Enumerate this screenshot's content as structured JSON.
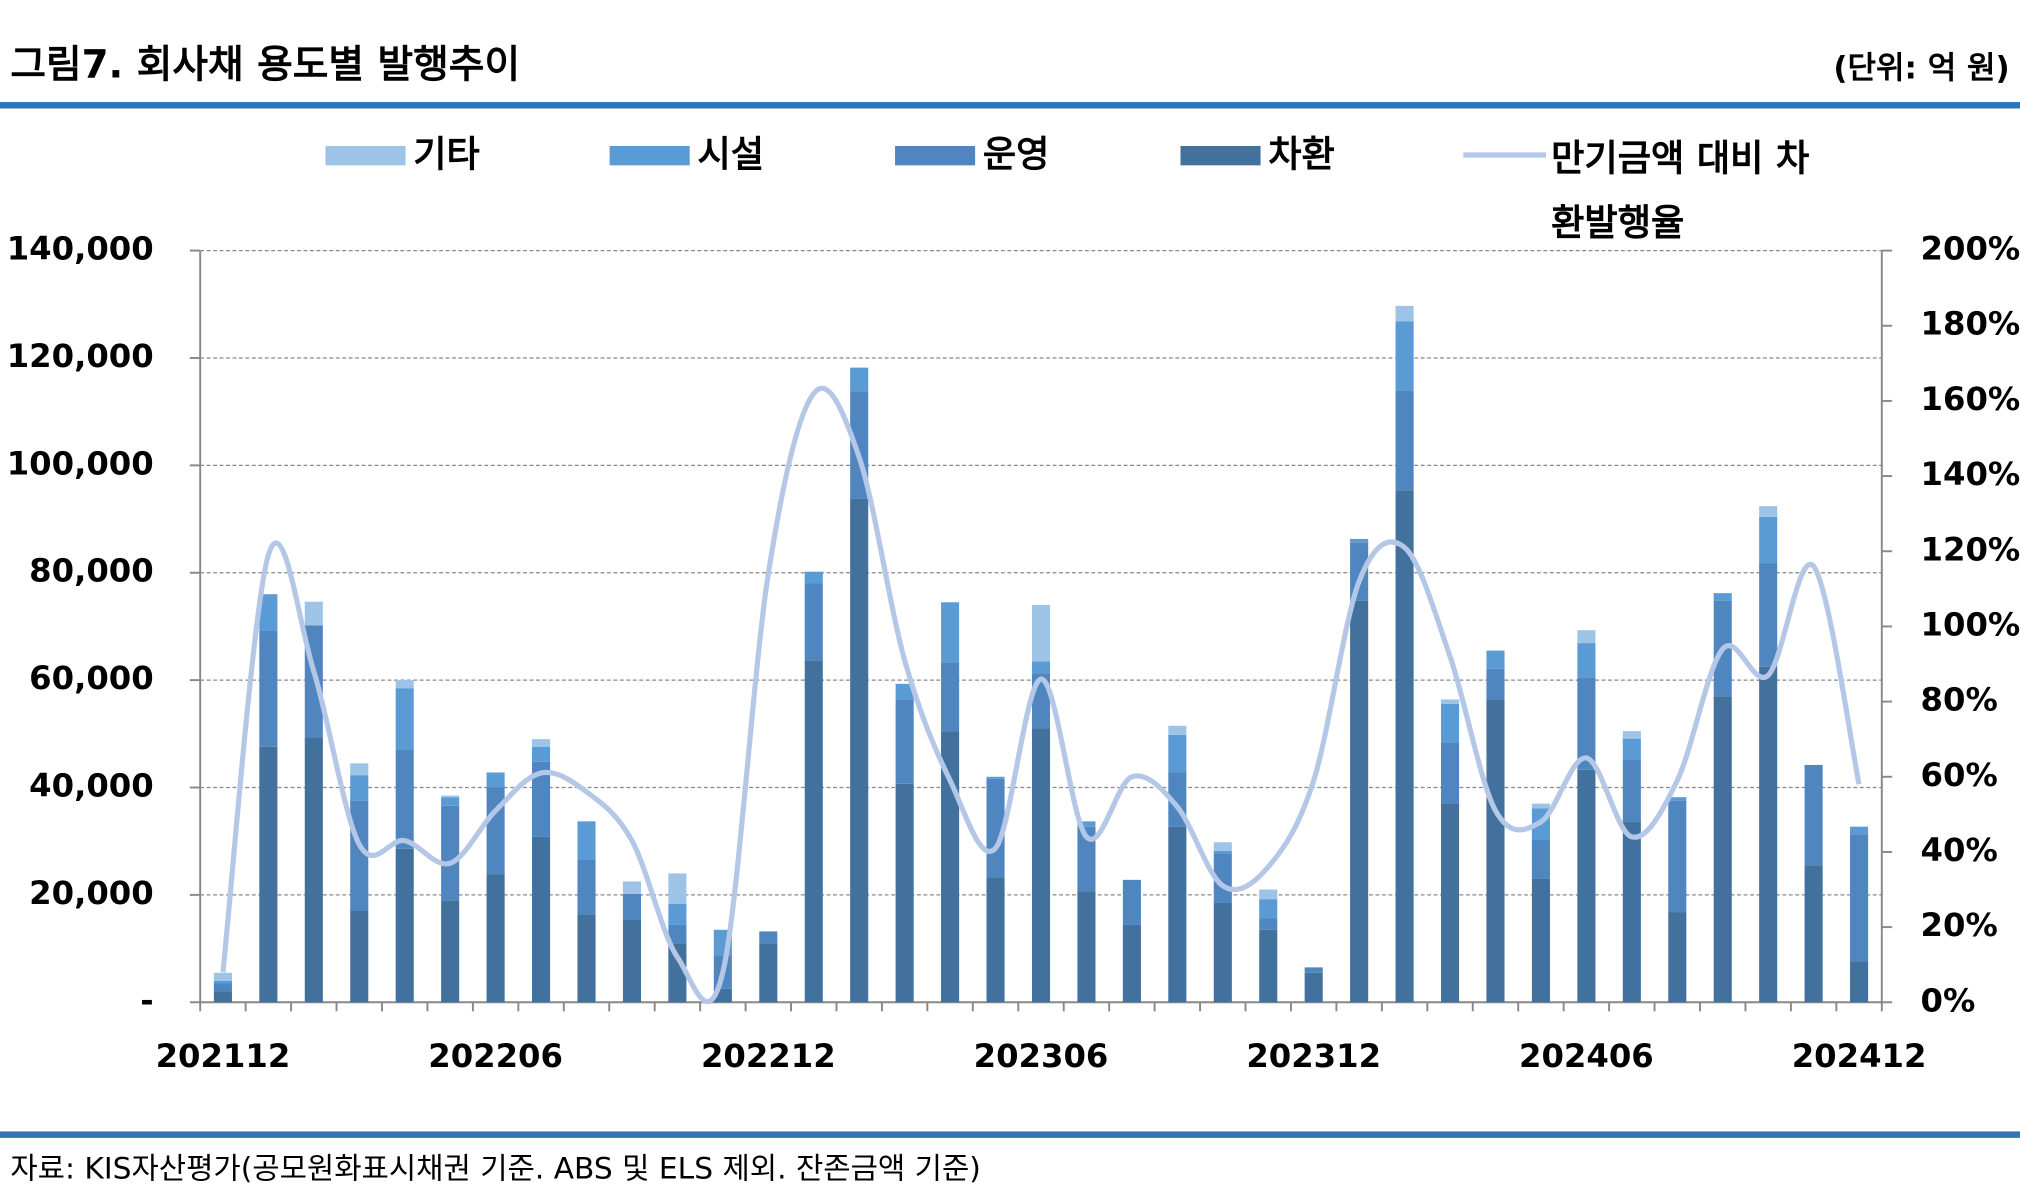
{
  "chart_data": {
    "type": "bar",
    "title": "그림7. 회사채 용도별 발행추이",
    "unit_label": "(단위: 억 원)",
    "source": "자료: KIS자산평가(공모원화표시채권 기준. ABS 및 ELS 제외. 잔존금액 기준)",
    "stacked": true,
    "grid": true,
    "categories": [
      "202112",
      null,
      null,
      null,
      null,
      null,
      "202206",
      null,
      null,
      null,
      null,
      null,
      "202212",
      null,
      null,
      null,
      null,
      null,
      "202306",
      null,
      null,
      null,
      null,
      null,
      "202312",
      null,
      null,
      null,
      null,
      null,
      "202406",
      null,
      null,
      null,
      null,
      null,
      "202412"
    ],
    "series": [
      {
        "name": "기타",
        "color": "#9dc3e6",
        "values": [
          1500,
          0,
          4400,
          2200,
          1500,
          300,
          0,
          1400,
          0,
          2300,
          5700,
          0,
          0,
          0,
          0,
          0,
          0,
          0,
          10500,
          0,
          0,
          1700,
          1600,
          1800,
          0,
          0,
          2900,
          800,
          0,
          900,
          2400,
          1400,
          0,
          0,
          2000,
          0,
          0
        ]
      },
      {
        "name": "시설",
        "color": "#5b9bd5",
        "values": [
          500,
          6700,
          0,
          4800,
          11400,
          1600,
          2800,
          2800,
          7200,
          0,
          3900,
          4800,
          0,
          2200,
          4400,
          3000,
          11200,
          400,
          2200,
          1000,
          0,
          7000,
          500,
          3600,
          0,
          700,
          12800,
          7200,
          3400,
          5800,
          6500,
          3900,
          700,
          1400,
          8600,
          0,
          1400
        ]
      },
      {
        "name": "운영",
        "color": "#4f86c0",
        "values": [
          1500,
          21700,
          20900,
          20500,
          18500,
          17600,
          16200,
          14000,
          10100,
          4800,
          3400,
          6200,
          2200,
          14300,
          20000,
          15600,
          12800,
          18300,
          10300,
          12000,
          8400,
          10100,
          9200,
          2100,
          1000,
          10800,
          18700,
          11400,
          5800,
          7200,
          17100,
          11500,
          20700,
          17800,
          19300,
          18700,
          23800
        ]
      },
      {
        "name": "차환",
        "color": "#41719c",
        "values": [
          2000,
          47600,
          49300,
          17000,
          28600,
          19000,
          23800,
          30800,
          16400,
          15400,
          11000,
          2500,
          11000,
          63700,
          93800,
          40700,
          50500,
          23300,
          51000,
          20700,
          14400,
          32700,
          18500,
          13500,
          5500,
          74800,
          95300,
          37000,
          56300,
          23100,
          43300,
          33700,
          16800,
          57000,
          62500,
          25500,
          7500
        ]
      },
      {
        "name": "만기금액 대비 차환발행율",
        "type": "line",
        "axis": "y2",
        "color": "#b4c7e7",
        "values": [
          8,
          119,
          88,
          42,
          43,
          37,
          51,
          61,
          56,
          43,
          12,
          8,
          114,
          162,
          145,
          91,
          59,
          41,
          86,
          44,
          60,
          52,
          31,
          36,
          59,
          112,
          121,
          92,
          51,
          48,
          65,
          44,
          59,
          94,
          87,
          116,
          58
        ]
      }
    ],
    "ylim": [
      0,
      140000
    ],
    "yticks": [
      {
        "value": 0,
        "label": "-"
      },
      {
        "value": 20000,
        "label": "20,000"
      },
      {
        "value": 40000,
        "label": "40,000"
      },
      {
        "value": 60000,
        "label": "60,000"
      },
      {
        "value": 80000,
        "label": "80,000"
      },
      {
        "value": 100000,
        "label": "100,000"
      },
      {
        "value": 120000,
        "label": "120,000"
      },
      {
        "value": 140000,
        "label": "140,000"
      }
    ],
    "y2lim": [
      0,
      200
    ],
    "y2ticks": [
      {
        "value": 0,
        "label": "0%"
      },
      {
        "value": 20,
        "label": "20%"
      },
      {
        "value": 40,
        "label": "40%"
      },
      {
        "value": 60,
        "label": "60%"
      },
      {
        "value": 80,
        "label": "80%"
      },
      {
        "value": 100,
        "label": "100%"
      },
      {
        "value": 120,
        "label": "120%"
      },
      {
        "value": 140,
        "label": "140%"
      },
      {
        "value": 160,
        "label": "160%"
      },
      {
        "value": 180,
        "label": "180%"
      },
      {
        "value": 200,
        "label": "200%"
      }
    ]
  }
}
